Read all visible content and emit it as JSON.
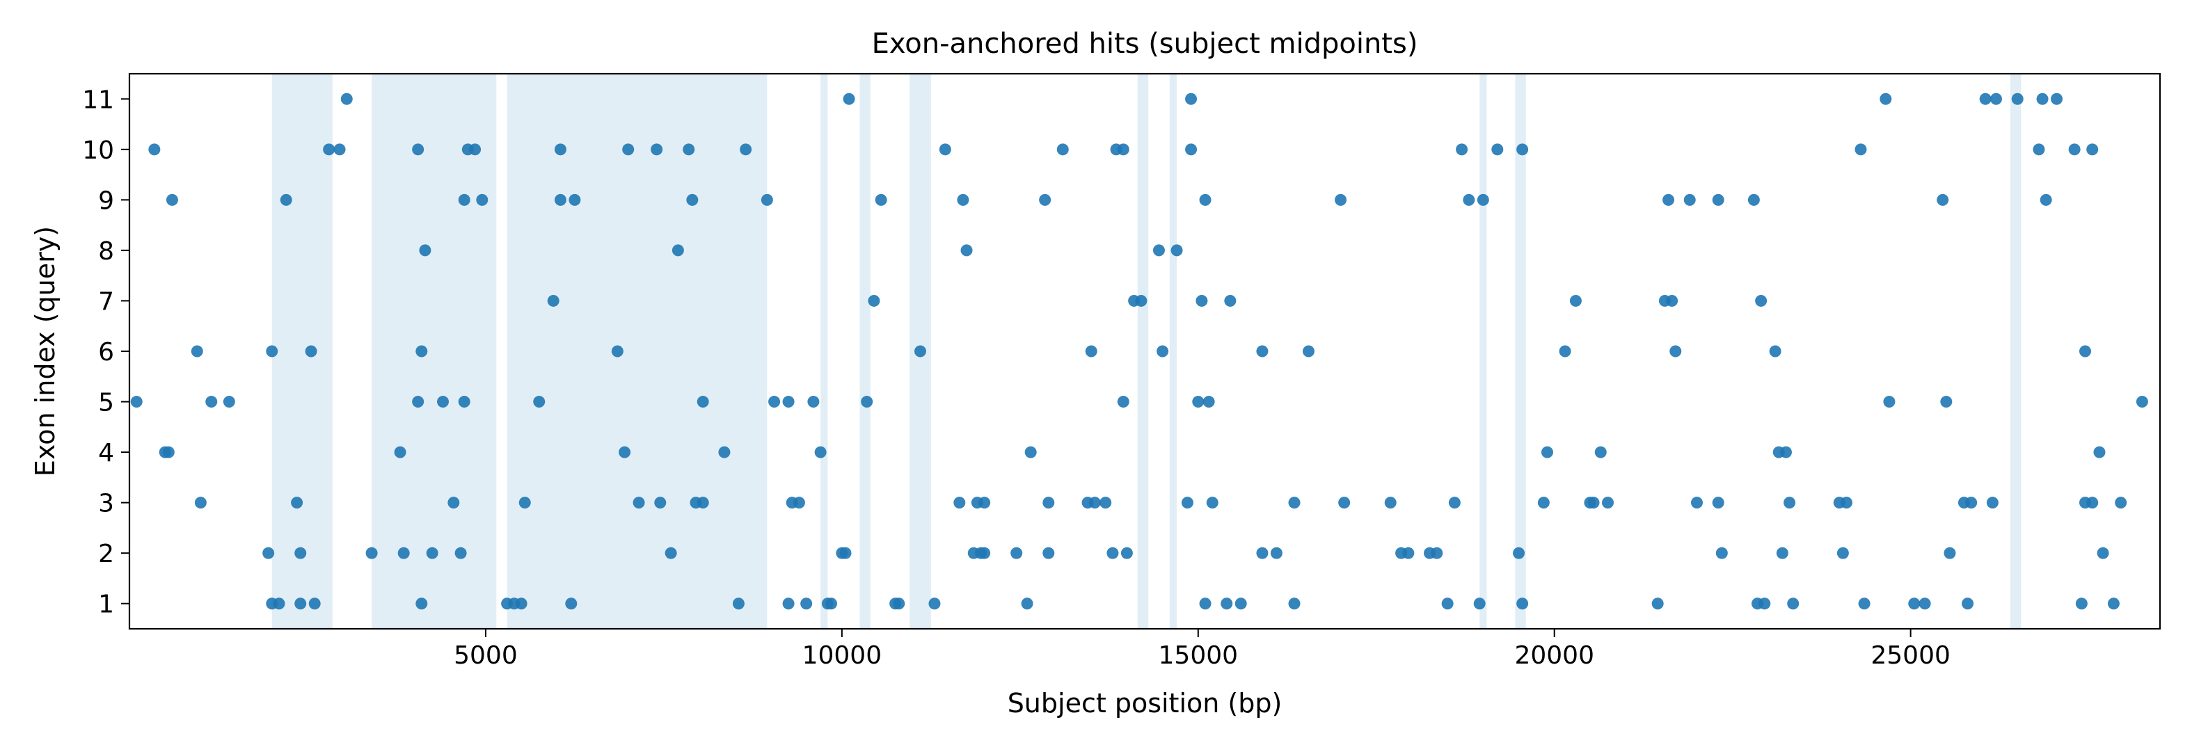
{
  "chart_data": {
    "type": "scatter",
    "title": "Exon-anchored hits (subject midpoints)",
    "xlabel": "Subject position (bp)",
    "ylabel": "Exon index (query)",
    "xlim": [
      0,
      28500
    ],
    "ylim": [
      0.5,
      11.5
    ],
    "xticks": [
      5000,
      10000,
      15000,
      20000,
      25000
    ],
    "yticks": [
      1,
      2,
      3,
      4,
      5,
      6,
      7,
      8,
      9,
      10,
      11
    ],
    "grid": false,
    "legend": false,
    "colors": {
      "marker": "#1f77b4",
      "band": "#cfe3f0",
      "axes": "#000000"
    },
    "shaded_regions": [
      [
        2000,
        2850
      ],
      [
        3400,
        5150
      ],
      [
        5300,
        8950
      ],
      [
        9700,
        9800
      ],
      [
        10250,
        10400
      ],
      [
        10950,
        11250
      ],
      [
        14150,
        14300
      ],
      [
        14600,
        14700
      ],
      [
        18950,
        19050
      ],
      [
        19450,
        19600
      ],
      [
        26400,
        26550
      ]
    ],
    "series": [
      {
        "points": [
          [
            100,
            5
          ],
          [
            350,
            10
          ],
          [
            500,
            4
          ],
          [
            550,
            4
          ],
          [
            600,
            9
          ],
          [
            950,
            6
          ],
          [
            1000,
            3
          ],
          [
            1150,
            5
          ],
          [
            1400,
            5
          ],
          [
            1950,
            2
          ],
          [
            2000,
            6
          ],
          [
            2000,
            1
          ],
          [
            2100,
            1
          ],
          [
            2200,
            9
          ],
          [
            2350,
            3
          ],
          [
            2400,
            2
          ],
          [
            2400,
            1
          ],
          [
            2550,
            6
          ],
          [
            2600,
            1
          ],
          [
            2800,
            10
          ],
          [
            2950,
            10
          ],
          [
            3050,
            11
          ],
          [
            3400,
            2
          ],
          [
            3800,
            4
          ],
          [
            3850,
            2
          ],
          [
            4050,
            10
          ],
          [
            4050,
            5
          ],
          [
            4100,
            6
          ],
          [
            4100,
            1
          ],
          [
            4150,
            8
          ],
          [
            4250,
            2
          ],
          [
            4400,
            5
          ],
          [
            4550,
            3
          ],
          [
            4650,
            2
          ],
          [
            4700,
            9
          ],
          [
            4700,
            5
          ],
          [
            4750,
            10
          ],
          [
            4850,
            10
          ],
          [
            4950,
            9
          ],
          [
            5300,
            1
          ],
          [
            5400,
            1
          ],
          [
            5500,
            1
          ],
          [
            5550,
            3
          ],
          [
            5750,
            5
          ],
          [
            5950,
            7
          ],
          [
            6050,
            10
          ],
          [
            6050,
            9
          ],
          [
            6200,
            1
          ],
          [
            6250,
            9
          ],
          [
            6850,
            6
          ],
          [
            6950,
            4
          ],
          [
            7000,
            10
          ],
          [
            7150,
            3
          ],
          [
            7400,
            10
          ],
          [
            7450,
            3
          ],
          [
            7600,
            2
          ],
          [
            7700,
            8
          ],
          [
            7850,
            10
          ],
          [
            7900,
            9
          ],
          [
            7950,
            3
          ],
          [
            8050,
            3
          ],
          [
            8050,
            5
          ],
          [
            8350,
            4
          ],
          [
            8550,
            1
          ],
          [
            8650,
            10
          ],
          [
            8950,
            9
          ],
          [
            9050,
            5
          ],
          [
            9250,
            5
          ],
          [
            9250,
            1
          ],
          [
            9300,
            3
          ],
          [
            9400,
            3
          ],
          [
            9500,
            1
          ],
          [
            9600,
            5
          ],
          [
            9700,
            4
          ],
          [
            9800,
            1
          ],
          [
            9850,
            1
          ],
          [
            10000,
            2
          ],
          [
            10050,
            2
          ],
          [
            10100,
            11
          ],
          [
            10350,
            5
          ],
          [
            10450,
            7
          ],
          [
            10550,
            9
          ],
          [
            10750,
            1
          ],
          [
            10800,
            1
          ],
          [
            11100,
            6
          ],
          [
            11300,
            1
          ],
          [
            11450,
            10
          ],
          [
            11650,
            3
          ],
          [
            11700,
            9
          ],
          [
            11750,
            8
          ],
          [
            11850,
            2
          ],
          [
            11900,
            3
          ],
          [
            11950,
            2
          ],
          [
            12000,
            3
          ],
          [
            12000,
            2
          ],
          [
            12450,
            2
          ],
          [
            12600,
            1
          ],
          [
            12650,
            4
          ],
          [
            12850,
            9
          ],
          [
            12900,
            2
          ],
          [
            12900,
            3
          ],
          [
            13100,
            10
          ],
          [
            13450,
            3
          ],
          [
            13500,
            6
          ],
          [
            13550,
            3
          ],
          [
            13700,
            3
          ],
          [
            13800,
            2
          ],
          [
            13850,
            10
          ],
          [
            13950,
            10
          ],
          [
            13950,
            5
          ],
          [
            14000,
            2
          ],
          [
            14100,
            7
          ],
          [
            14200,
            7
          ],
          [
            14450,
            8
          ],
          [
            14500,
            6
          ],
          [
            14700,
            8
          ],
          [
            14850,
            3
          ],
          [
            14900,
            11
          ],
          [
            14900,
            10
          ],
          [
            15000,
            5
          ],
          [
            15050,
            7
          ],
          [
            15100,
            9
          ],
          [
            15100,
            1
          ],
          [
            15150,
            5
          ],
          [
            15200,
            3
          ],
          [
            15400,
            1
          ],
          [
            15450,
            7
          ],
          [
            15600,
            1
          ],
          [
            15900,
            6
          ],
          [
            15900,
            2
          ],
          [
            16100,
            2
          ],
          [
            16350,
            3
          ],
          [
            16350,
            1
          ],
          [
            16550,
            6
          ],
          [
            17000,
            9
          ],
          [
            17050,
            3
          ],
          [
            17700,
            3
          ],
          [
            17850,
            2
          ],
          [
            17950,
            2
          ],
          [
            18250,
            2
          ],
          [
            18350,
            2
          ],
          [
            18500,
            1
          ],
          [
            18600,
            3
          ],
          [
            18700,
            10
          ],
          [
            18800,
            9
          ],
          [
            18950,
            1
          ],
          [
            19000,
            9
          ],
          [
            19200,
            10
          ],
          [
            19500,
            2
          ],
          [
            19550,
            10
          ],
          [
            19550,
            1
          ],
          [
            19850,
            3
          ],
          [
            19900,
            4
          ],
          [
            20150,
            6
          ],
          [
            20300,
            7
          ],
          [
            20500,
            3
          ],
          [
            20550,
            3
          ],
          [
            20650,
            4
          ],
          [
            20750,
            3
          ],
          [
            21450,
            1
          ],
          [
            21550,
            7
          ],
          [
            21600,
            9
          ],
          [
            21650,
            7
          ],
          [
            21700,
            6
          ],
          [
            21900,
            9
          ],
          [
            22000,
            3
          ],
          [
            22300,
            9
          ],
          [
            22300,
            3
          ],
          [
            22350,
            2
          ],
          [
            22800,
            9
          ],
          [
            22850,
            1
          ],
          [
            22900,
            7
          ],
          [
            22950,
            1
          ],
          [
            23100,
            6
          ],
          [
            23150,
            4
          ],
          [
            23200,
            2
          ],
          [
            23250,
            4
          ],
          [
            23300,
            3
          ],
          [
            23350,
            1
          ],
          [
            24000,
            3
          ],
          [
            24050,
            2
          ],
          [
            24100,
            3
          ],
          [
            24300,
            10
          ],
          [
            24350,
            1
          ],
          [
            24650,
            11
          ],
          [
            24700,
            5
          ],
          [
            25050,
            1
          ],
          [
            25200,
            1
          ],
          [
            25450,
            9
          ],
          [
            25500,
            5
          ],
          [
            25550,
            2
          ],
          [
            25750,
            3
          ],
          [
            25800,
            1
          ],
          [
            25850,
            3
          ],
          [
            26050,
            11
          ],
          [
            26150,
            3
          ],
          [
            26200,
            11
          ],
          [
            26500,
            11
          ],
          [
            26800,
            10
          ],
          [
            26850,
            11
          ],
          [
            26900,
            9
          ],
          [
            27050,
            11
          ],
          [
            27300,
            10
          ],
          [
            27400,
            1
          ],
          [
            27450,
            3
          ],
          [
            27450,
            6
          ],
          [
            27550,
            10
          ],
          [
            27550,
            3
          ],
          [
            27650,
            4
          ],
          [
            27700,
            2
          ],
          [
            27850,
            1
          ],
          [
            27950,
            3
          ],
          [
            28250,
            5
          ]
        ]
      }
    ]
  }
}
